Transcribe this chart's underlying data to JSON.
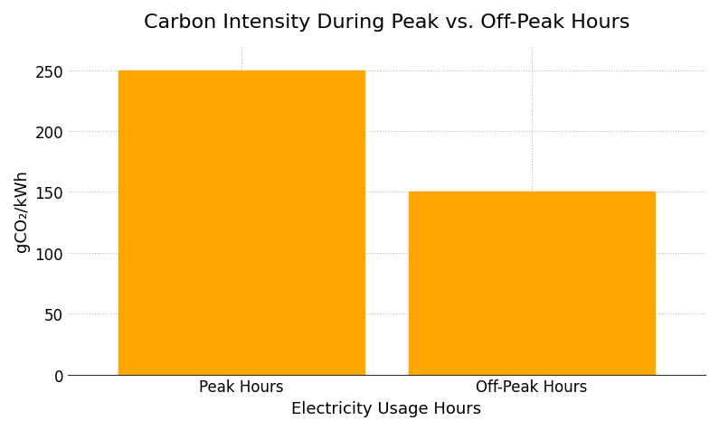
{
  "title": "Carbon Intensity During Peak vs. Off-Peak Hours",
  "categories": [
    "Peak Hours",
    "Off-Peak Hours"
  ],
  "values": [
    250,
    150
  ],
  "bar_color": "#FFA500",
  "bar_edgecolor": "#FFA500",
  "xlabel": "Electricity Usage Hours",
  "ylabel": "gCO₂/kWh",
  "ylim": [
    0,
    270
  ],
  "yticks": [
    0,
    50,
    100,
    150,
    200,
    250
  ],
  "grid_color": "#BBBBBB",
  "grid_linestyle": ":",
  "background_color": "#FFFFFF",
  "title_fontsize": 16,
  "label_fontsize": 13,
  "tick_fontsize": 12,
  "bar_width": 0.85
}
